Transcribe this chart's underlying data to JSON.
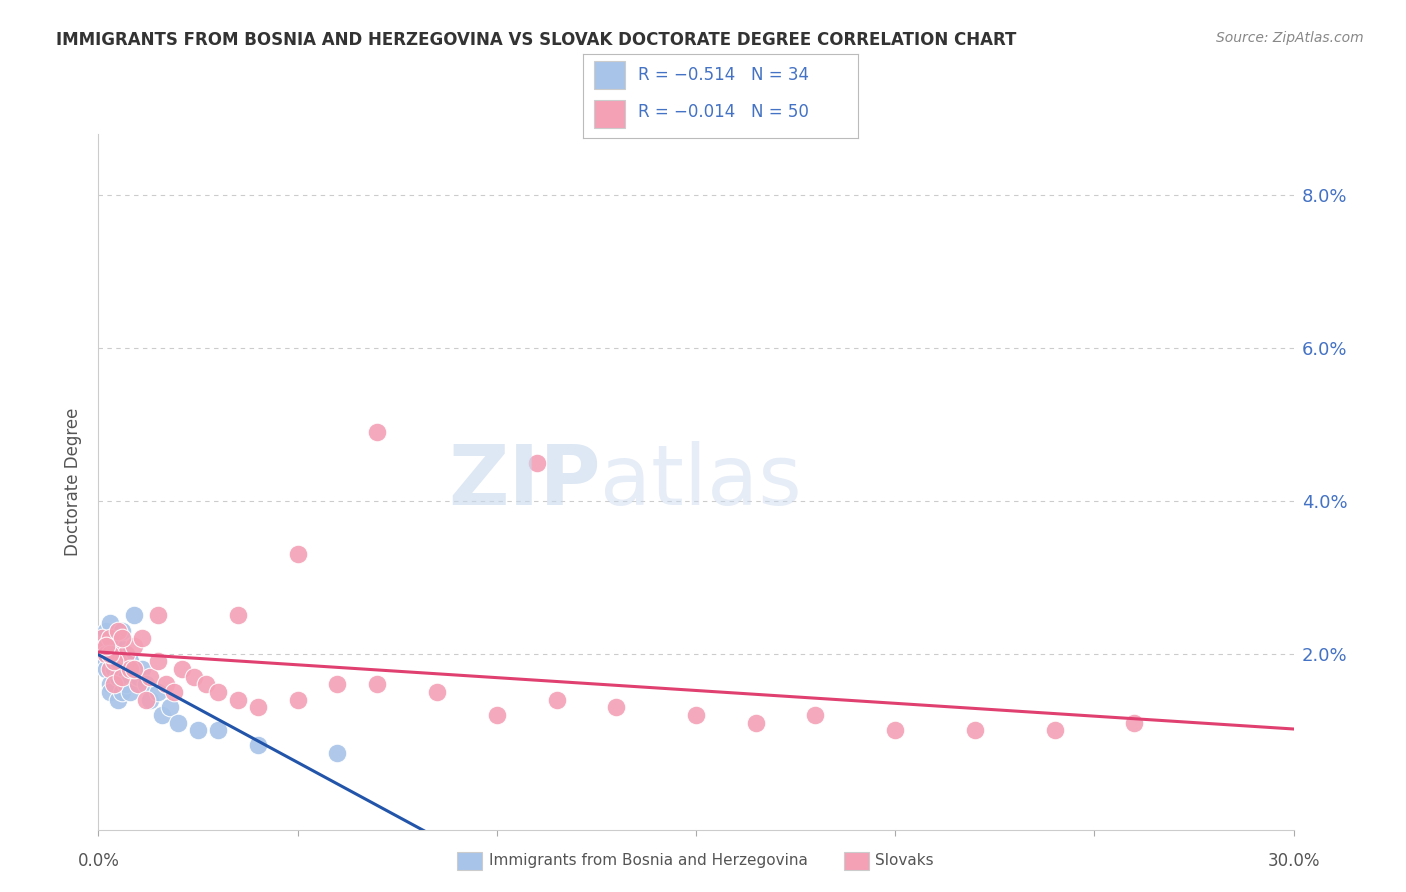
{
  "title": "IMMIGRANTS FROM BOSNIA AND HERZEGOVINA VS SLOVAK DOCTORATE DEGREE CORRELATION CHART",
  "source": "Source: ZipAtlas.com",
  "ylabel": "Doctorate Degree",
  "ytick_values": [
    0.0,
    0.02,
    0.04,
    0.06,
    0.08
  ],
  "ytick_labels": [
    "",
    "2.0%",
    "4.0%",
    "6.0%",
    "8.0%"
  ],
  "xmin": 0.0,
  "xmax": 0.3,
  "ymin": -0.003,
  "ymax": 0.088,
  "color_blue": "#A8C4E8",
  "color_pink": "#F4A0B5",
  "color_blue_line": "#2255AA",
  "color_pink_line": "#E04070",
  "background": "#FFFFFF",
  "grid_color": "#CCCCCC",
  "axis_color": "#4472C4",
  "title_color": "#333333",
  "blue_points_x": [
    0.001,
    0.002,
    0.002,
    0.002,
    0.003,
    0.003,
    0.003,
    0.003,
    0.004,
    0.004,
    0.005,
    0.005,
    0.005,
    0.006,
    0.006,
    0.006,
    0.007,
    0.007,
    0.008,
    0.008,
    0.009,
    0.009,
    0.01,
    0.011,
    0.012,
    0.013,
    0.015,
    0.016,
    0.018,
    0.02,
    0.025,
    0.03,
    0.04,
    0.06
  ],
  "blue_points_y": [
    0.021,
    0.023,
    0.019,
    0.018,
    0.024,
    0.02,
    0.016,
    0.015,
    0.022,
    0.018,
    0.021,
    0.017,
    0.014,
    0.023,
    0.019,
    0.015,
    0.02,
    0.016,
    0.019,
    0.015,
    0.018,
    0.025,
    0.017,
    0.018,
    0.016,
    0.014,
    0.015,
    0.012,
    0.013,
    0.011,
    0.01,
    0.01,
    0.008,
    0.007
  ],
  "pink_points_x": [
    0.001,
    0.002,
    0.002,
    0.003,
    0.003,
    0.004,
    0.004,
    0.005,
    0.005,
    0.006,
    0.007,
    0.008,
    0.009,
    0.01,
    0.011,
    0.012,
    0.013,
    0.015,
    0.017,
    0.019,
    0.021,
    0.024,
    0.027,
    0.03,
    0.035,
    0.04,
    0.05,
    0.06,
    0.07,
    0.085,
    0.1,
    0.115,
    0.13,
    0.15,
    0.165,
    0.18,
    0.2,
    0.22,
    0.24,
    0.26,
    0.07,
    0.05,
    0.035,
    0.015,
    0.009,
    0.006,
    0.004,
    0.003,
    0.002,
    0.11
  ],
  "pink_points_y": [
    0.022,
    0.021,
    0.02,
    0.022,
    0.018,
    0.02,
    0.016,
    0.019,
    0.023,
    0.017,
    0.02,
    0.018,
    0.021,
    0.016,
    0.022,
    0.014,
    0.017,
    0.019,
    0.016,
    0.015,
    0.018,
    0.017,
    0.016,
    0.015,
    0.014,
    0.013,
    0.014,
    0.016,
    0.016,
    0.015,
    0.012,
    0.014,
    0.013,
    0.012,
    0.011,
    0.012,
    0.01,
    0.01,
    0.01,
    0.011,
    0.049,
    0.033,
    0.025,
    0.025,
    0.018,
    0.022,
    0.019,
    0.02,
    0.021,
    0.045
  ],
  "legend_text_r1": "R = −0.514",
  "legend_text_n1": "N = 34",
  "legend_text_r2": "R = −0.014",
  "legend_text_n2": "N = 50",
  "label_bosnia": "Immigrants from Bosnia and Herzegovina",
  "label_slovak": "Slovaks"
}
